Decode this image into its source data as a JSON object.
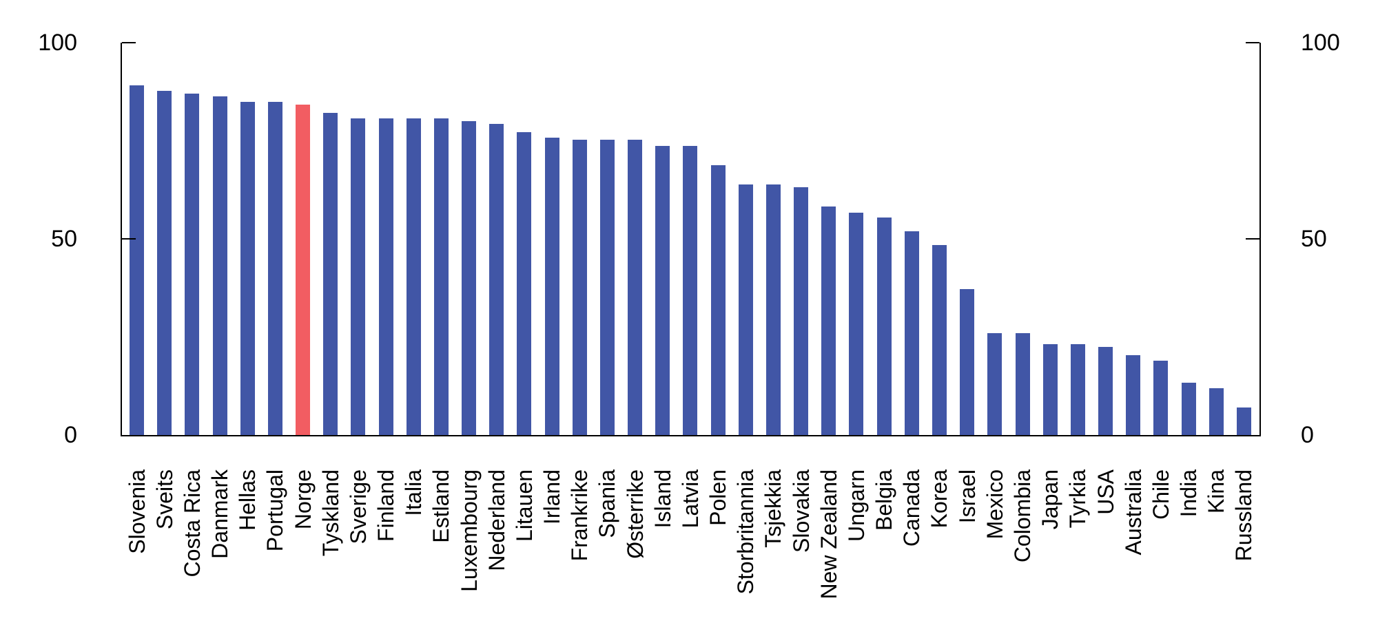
{
  "chart_data": {
    "type": "bar",
    "title": "",
    "xlabel": "",
    "ylabel": "",
    "categories": [
      "Slovenia",
      "Sveits",
      "Costa Rica",
      "Danmark",
      "Hellas",
      "Portugal",
      "Norge",
      "Tyskland",
      "Sverige",
      "Finland",
      "Italia",
      "Estland",
      "Luxembourg",
      "Nederland",
      "Litauen",
      "Irland",
      "Frankrike",
      "Spania",
      "Østerrike",
      "Island",
      "Latvia",
      "Polen",
      "Storbritannia",
      "Tsjekkia",
      "Slovakia",
      "New Zealand",
      "Ungarn",
      "Belgia",
      "Canada",
      "Korea",
      "Israel",
      "Mexico",
      "Colombia",
      "Japan",
      "Tyrkia",
      "USA",
      "Australia",
      "Chile",
      "India",
      "Kina",
      "Russland"
    ],
    "values": [
      89.2,
      87.7,
      87.1,
      86.4,
      85.0,
      85.0,
      84.2,
      82.1,
      80.7,
      80.7,
      80.7,
      80.7,
      80.0,
      79.3,
      77.2,
      75.8,
      75.2,
      75.2,
      75.2,
      73.7,
      73.7,
      68.8,
      63.9,
      63.9,
      63.1,
      58.2,
      56.7,
      55.4,
      51.9,
      48.4,
      37.2,
      26.0,
      26.0,
      23.1,
      23.1,
      22.4,
      20.3,
      18.9,
      13.3,
      11.9,
      7.0
    ],
    "highlight_category": "Norge",
    "highlight_index": 6,
    "bar_color": "#4156A6",
    "highlight_color": "#F25D62",
    "axis_color": "#000000",
    "background_color": "#FFFFFF",
    "ylim": [
      0,
      100
    ],
    "yticks": [
      0,
      50,
      100
    ],
    "ytick_labels": [
      "0",
      "50",
      "100"
    ],
    "y_axis_sides": [
      "left",
      "right"
    ],
    "grid": false,
    "legend_position": "none"
  }
}
